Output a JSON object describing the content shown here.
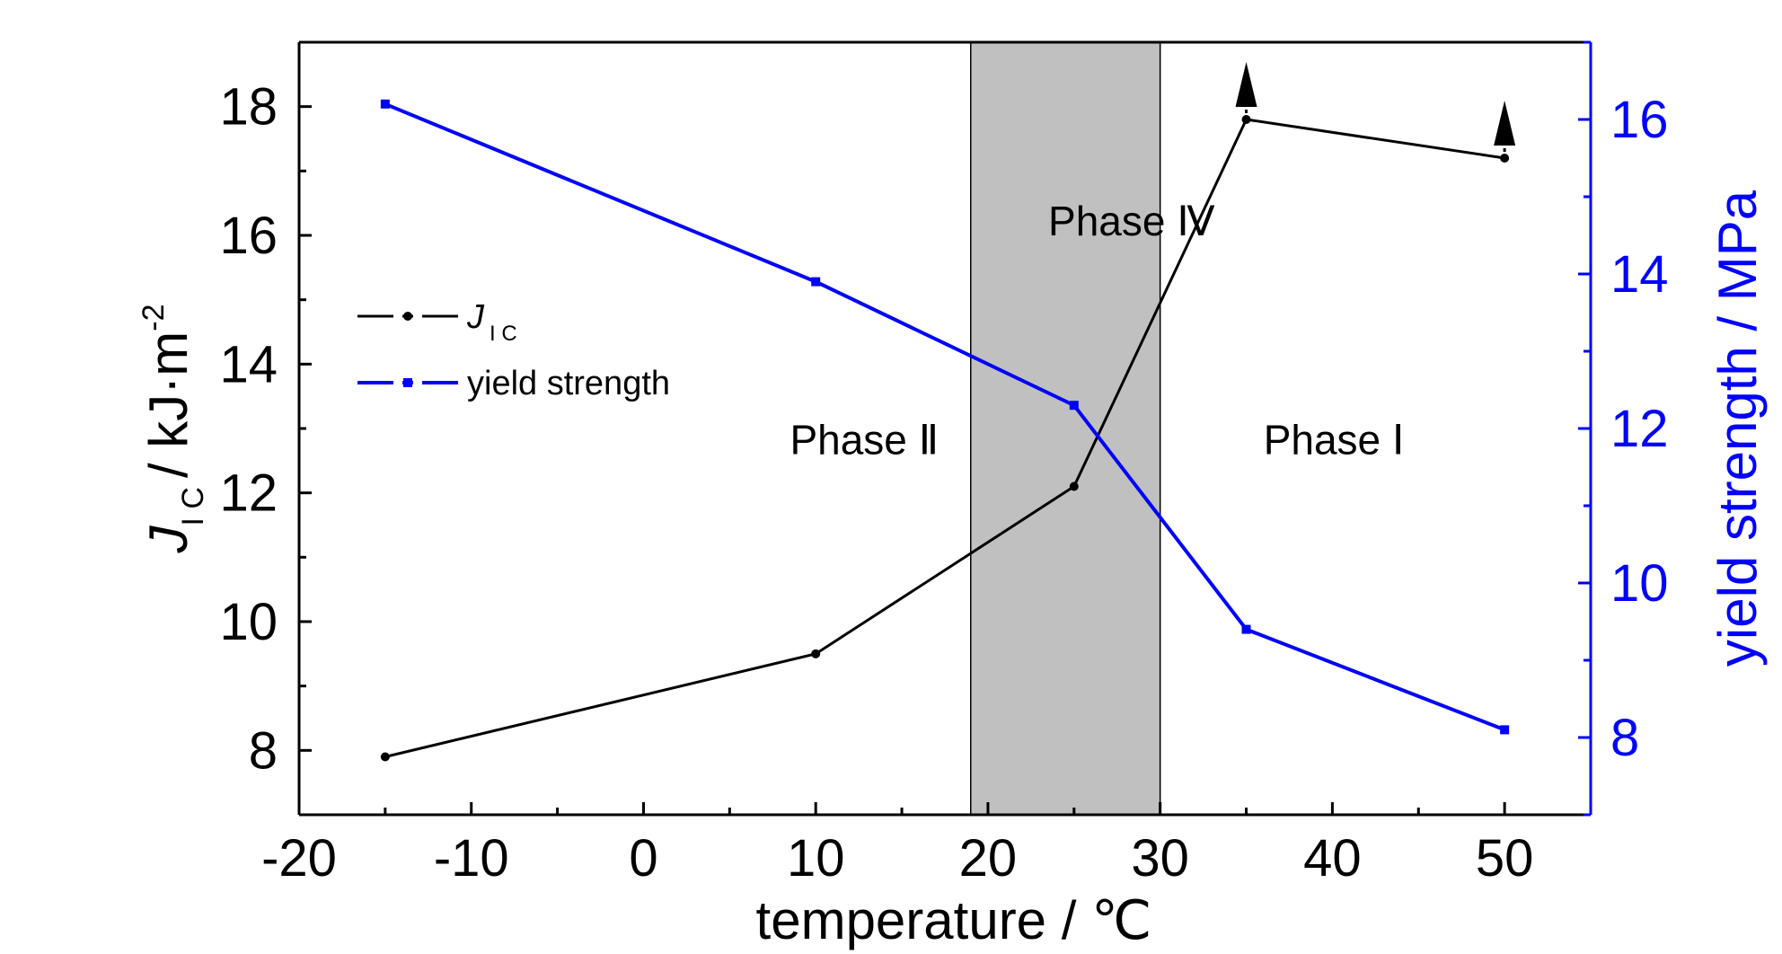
{
  "chart_data": {
    "type": "line",
    "x": [
      -15,
      10,
      25,
      35,
      50
    ],
    "series": [
      {
        "name": "J IC",
        "axis": "left",
        "color": "#000000",
        "values": [
          7.9,
          9.5,
          12.1,
          17.8,
          17.2
        ],
        "arrow_at_x": [
          35,
          50
        ]
      },
      {
        "name": "yield strength",
        "axis": "right",
        "color": "#0000ff",
        "values": [
          16.2,
          13.9,
          12.3,
          9.4,
          8.1
        ]
      }
    ],
    "xlabel": "temperature / ℃",
    "ylabel_left": {
      "symbol": "J",
      "subscript": "I C",
      "unit": "/ kJ·m",
      "exponent": "-2"
    },
    "ylabel_right": "yield strength / MPa",
    "xlim": [
      -20,
      55
    ],
    "ylim_left": [
      7,
      19
    ],
    "ylim_right": [
      7,
      17
    ],
    "xticks": [
      "-20",
      "-10",
      "0",
      "10",
      "20",
      "30",
      "40",
      "50"
    ],
    "yticks_left": [
      "8",
      "10",
      "12",
      "14",
      "16",
      "18"
    ],
    "yticks_right": [
      "8",
      "10",
      "12",
      "14",
      "16"
    ],
    "shaded_region": {
      "x_range": [
        19,
        30
      ],
      "color": "#c0c0c0"
    },
    "annotations": [
      {
        "text": "Phase Ⅱ",
        "x": 8.5,
        "y": 12.6
      },
      {
        "text": "Phase Ⅳ",
        "x": 23.5,
        "y": 16
      },
      {
        "text": "Phase Ⅰ",
        "x": 36,
        "y": 12.6
      }
    ],
    "legend": {
      "placement": "upper-left",
      "items": [
        {
          "label": "J",
          "subscript": "I C",
          "color": "#000000"
        },
        {
          "label": "yield strength",
          "color": "#0000ff"
        }
      ]
    },
    "grid": false,
    "right_axis_color": "#0000ff"
  }
}
